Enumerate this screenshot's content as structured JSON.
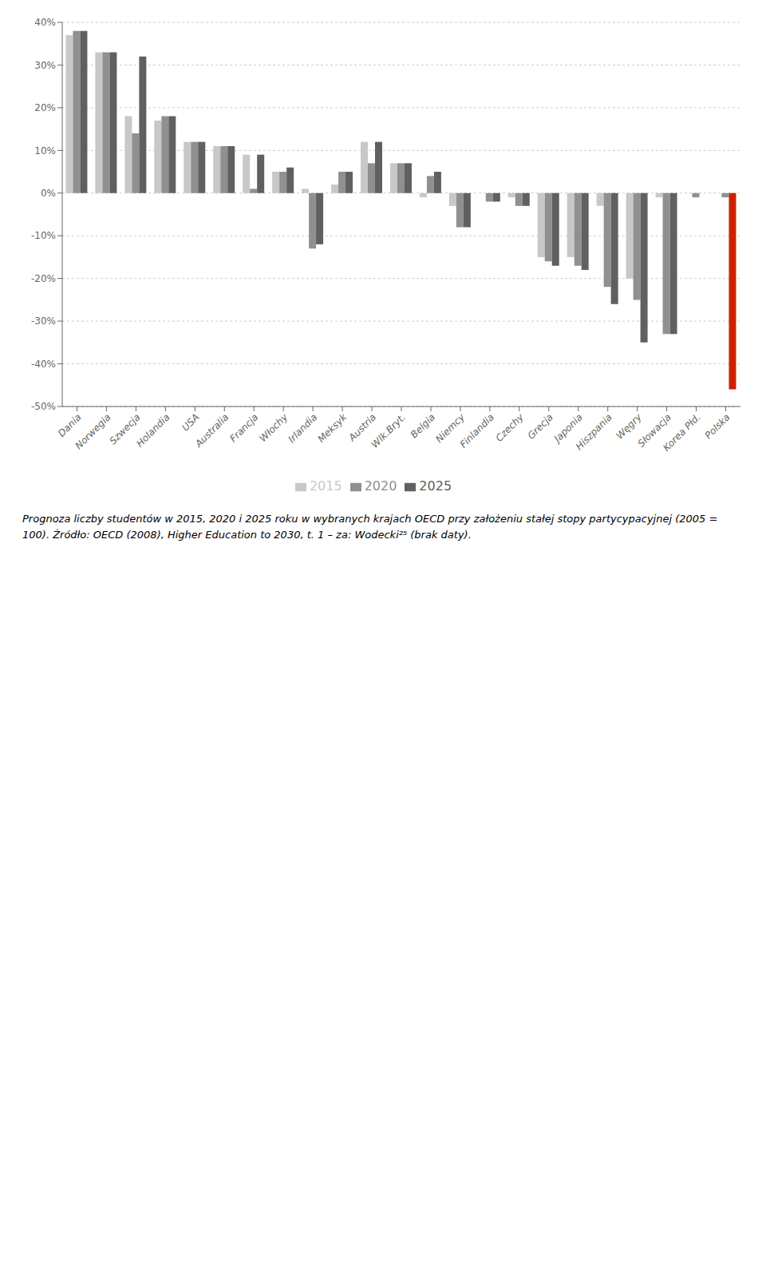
{
  "chart_data": {
    "type": "bar",
    "title": "Prognoza liczby studentów w 2015, 2020 i 2025 roku w wybranych krajach OECD przy założeniu stałej stopy partycypacyjnej (2005 = 100). Źródło: OECD (2008), Higher Education to 2030, t. 1 – za: Wodecki²⁵ (brak daty).",
    "categories": [
      "Dania",
      "Norwegia",
      "Szwecja",
      "Holandia",
      "USA",
      "Australia",
      "Francja",
      "Włochy",
      "Irlandia",
      "Meksyk",
      "Austria",
      "Wlk.Bryt.",
      "Belgia",
      "Niemcy",
      "Finlandia",
      "Czechy",
      "Grecja",
      "Japonia",
      "Hiszpania",
      "Węgry",
      "Słowacja",
      "Korea Płd.",
      "Polska"
    ],
    "series": [
      {
        "name": "2015",
        "color": "#c8c8c8",
        "values": [
          37,
          33,
          18,
          17,
          12,
          11,
          9,
          5,
          1,
          2,
          12,
          7,
          -1,
          -3,
          0,
          -1,
          -15,
          -15,
          -3,
          -20,
          -1,
          0,
          0
        ]
      },
      {
        "name": "2020",
        "color": "#909090",
        "values": [
          38,
          33,
          14,
          18,
          12,
          11,
          1,
          5,
          -13,
          5,
          7,
          7,
          4,
          -8,
          -2,
          -3,
          -16,
          -17,
          -22,
          -25,
          -33,
          -1,
          -1
        ]
      },
      {
        "name": "2025",
        "color": "#606060",
        "colors": [
          "#606060",
          "#606060",
          "#606060",
          "#606060",
          "#606060",
          "#606060",
          "#606060",
          "#606060",
          "#606060",
          "#606060",
          "#606060",
          "#606060",
          "#606060",
          "#606060",
          "#606060",
          "#606060",
          "#606060",
          "#606060",
          "#606060",
          "#606060",
          "#606060",
          "#f5c000",
          "#cc2200"
        ],
        "values": [
          38,
          33,
          32,
          18,
          12,
          11,
          9,
          6,
          -12,
          5,
          12,
          7,
          5,
          -8,
          -2,
          -3,
          -17,
          -18,
          -26,
          -35,
          -33,
          0,
          -46
        ]
      }
    ],
    "ylim": [
      -50,
      40
    ],
    "yticks": [
      {
        "value": -50,
        "label": "-50%"
      },
      {
        "value": -40,
        "label": "-40%"
      },
      {
        "value": -30,
        "label": "-30%"
      },
      {
        "value": -20,
        "label": "-20%"
      },
      {
        "value": -10,
        "label": "-10%"
      },
      {
        "value": 0,
        "label": "0%"
      },
      {
        "value": 10,
        "label": "10%"
      },
      {
        "value": 20,
        "label": "20%"
      },
      {
        "value": 30,
        "label": "30%"
      },
      {
        "value": 40,
        "label": "40%"
      }
    ],
    "grid": true,
    "legend": "bottom"
  }
}
